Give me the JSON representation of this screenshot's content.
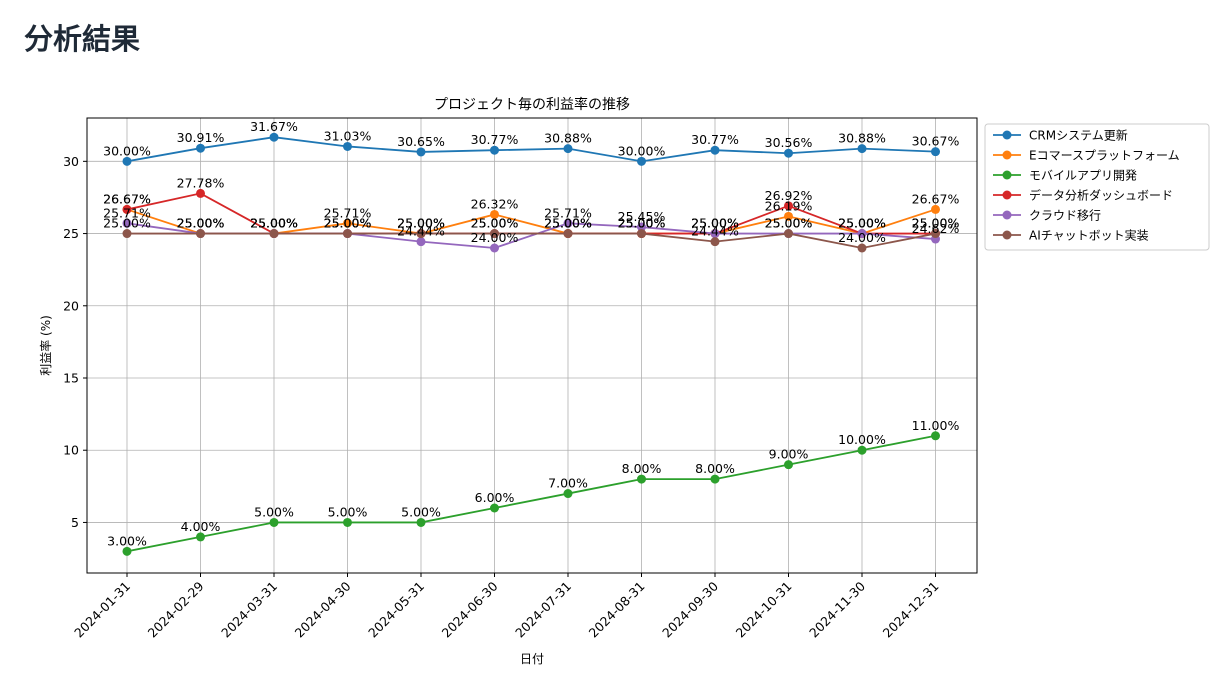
{
  "page": {
    "heading": "分析結果"
  },
  "chart_data": {
    "type": "line",
    "title": "プロジェクト毎の利益率の推移",
    "xlabel": "日付",
    "ylabel": "利益率 (%)",
    "ylim": [
      1.5,
      33
    ],
    "yticks": [
      5,
      10,
      15,
      20,
      25,
      30
    ],
    "grid": true,
    "legend_position": "outside-top-right",
    "x": [
      "2024-01-31",
      "2024-02-29",
      "2024-03-31",
      "2024-04-30",
      "2024-05-31",
      "2024-06-30",
      "2024-07-31",
      "2024-08-31",
      "2024-09-30",
      "2024-10-31",
      "2024-11-30",
      "2024-12-31"
    ],
    "series": [
      {
        "name": "CRMシステム更新",
        "color": "#1f77b4",
        "values": [
          30.0,
          30.91,
          31.67,
          31.03,
          30.65,
          30.77,
          30.88,
          30.0,
          30.77,
          30.56,
          30.88,
          30.67
        ]
      },
      {
        "name": "Eコマースプラットフォーム",
        "color": "#ff7f0e",
        "values": [
          26.67,
          25.0,
          25.0,
          25.71,
          25.0,
          26.32,
          25.0,
          25.0,
          25.0,
          26.19,
          25.0,
          26.67
        ]
      },
      {
        "name": "モバイルアプリ開発",
        "color": "#2ca02c",
        "values": [
          3.0,
          4.0,
          5.0,
          5.0,
          5.0,
          6.0,
          7.0,
          8.0,
          8.0,
          9.0,
          10.0,
          11.0
        ]
      },
      {
        "name": "データ分析ダッシュボード",
        "color": "#d62728",
        "values": [
          26.67,
          27.78,
          25.0,
          25.0,
          25.0,
          25.0,
          25.0,
          25.0,
          25.0,
          26.92,
          25.0,
          25.0
        ]
      },
      {
        "name": "クラウド移行",
        "color": "#9467bd",
        "values": [
          25.71,
          25.0,
          25.0,
          25.0,
          24.44,
          24.0,
          25.71,
          25.45,
          25.0,
          25.0,
          25.0,
          24.62
        ]
      },
      {
        "name": "AIチャットボット実装",
        "color": "#8c564b",
        "values": [
          25.0,
          25.0,
          25.0,
          25.0,
          25.0,
          25.0,
          25.0,
          25.0,
          24.44,
          25.0,
          24.0,
          25.0
        ]
      }
    ]
  }
}
